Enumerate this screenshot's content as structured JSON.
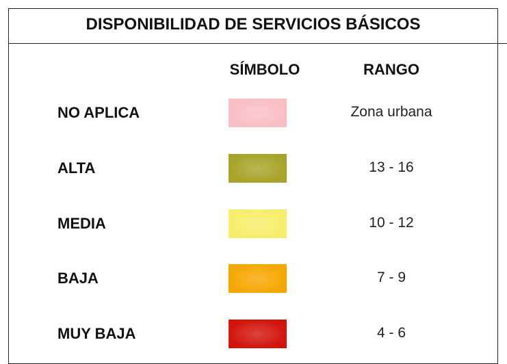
{
  "title": "DISPONIBILIDAD DE SERVICIOS BÁSICOS",
  "headers": {
    "symbol": "SÍMBOLO",
    "range": "RANGO"
  },
  "rows": [
    {
      "label": "NO APLICA",
      "color": "#f8bfc5",
      "range": "Zona urbana"
    },
    {
      "label": "ALTA",
      "color": "#a8a42a",
      "range": "13 - 16"
    },
    {
      "label": "MEDIA",
      "color": "#f7ee6c",
      "range": "10 - 12"
    },
    {
      "label": "BAJA",
      "color": "#f6a702",
      "range": "7 - 9"
    },
    {
      "label": "MUY BAJA",
      "color": "#d2160c",
      "range": "4 - 6"
    }
  ]
}
